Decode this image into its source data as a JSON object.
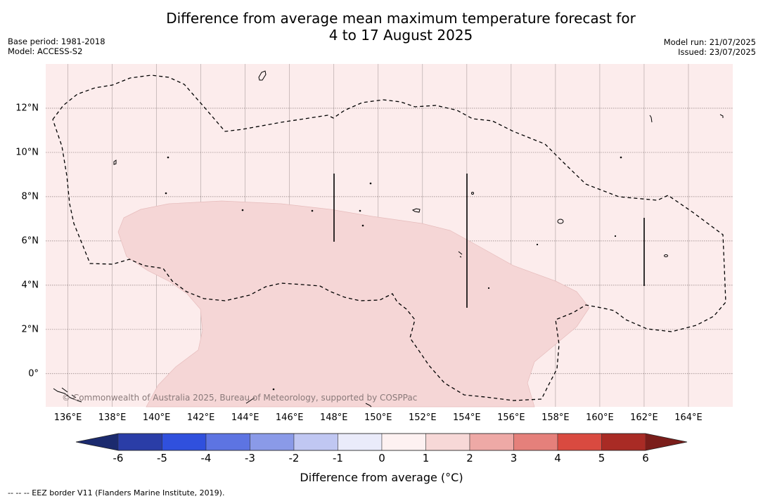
{
  "title": {
    "line1": "Difference from average mean maximum temperature forecast for",
    "line2": "4 to 17 August 2025"
  },
  "meta": {
    "base_period": "Base period: 1981-2018",
    "model": "Model: ACCESS-S2",
    "model_run": "Model run: 21/07/2025",
    "issued": "Issued: 23/07/2025"
  },
  "map": {
    "lon_range": [
      135,
      166
    ],
    "lat_range": [
      -1.5,
      14
    ],
    "background_color": "#fcecec",
    "region_color": "#f5d6d6",
    "x_ticks": [
      "136°E",
      "138°E",
      "140°E",
      "142°E",
      "144°E",
      "146°E",
      "148°E",
      "150°E",
      "152°E",
      "154°E",
      "156°E",
      "158°E",
      "160°E",
      "162°E",
      "164°E"
    ],
    "y_ticks": [
      "12°N",
      "10°N",
      "8°N",
      "6°N",
      "4°N",
      "2°N",
      "0°"
    ],
    "copyright": "© Commonwealth of Australia 2025, Bureau of Meteorology, supported by COSPPac"
  },
  "colorbar": {
    "ticks": [
      "-6",
      "-5",
      "-4",
      "-3",
      "-2",
      "-1",
      "0",
      "1",
      "2",
      "3",
      "4",
      "5",
      "6"
    ],
    "colors": [
      "#2a3da7",
      "#3050dd",
      "#5d74e2",
      "#8a9ae8",
      "#c0c7f2",
      "#eaebfa",
      "#fdf1f1",
      "#f7d8d7",
      "#eea9a6",
      "#e5807b",
      "#d94a40",
      "#a92b25"
    ],
    "low_arrow_color": "#1b2a6e",
    "high_arrow_color": "#7a1d1a",
    "label": "Difference from average (°C)"
  },
  "footnote": "--  --  -- EEZ border V11 (Flanders Marine Institute, 2019)."
}
